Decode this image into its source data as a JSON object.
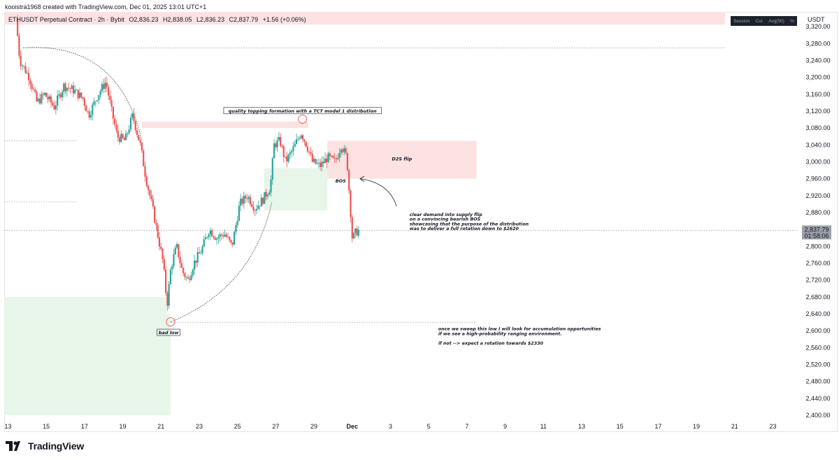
{
  "attribution": "kooistra1968 created with TradingView.com, Dec 01, 2025 13:01 UTC+1",
  "legend": {
    "symbol": "ETHUSDT Perpetual Contract · 2h · Bybit",
    "open": "O2,836.23",
    "high": "H2,838.05",
    "low": "L2,836.23",
    "close": "C2,837.79",
    "change": "+1.56 (+0.06%)"
  },
  "toolbar_badges": [
    "Session",
    "Cur",
    "Avg(50)",
    "%"
  ],
  "currency": "USDT",
  "brand": "TradingView",
  "price_label": {
    "price": "2,837.79",
    "countdown": "01:58:06"
  },
  "colors": {
    "up": "#26a69a",
    "down": "#ef5350",
    "supply_zone": "#fde2e2",
    "demand_zone": "#e8f5e9",
    "price_label_bg": "#9aa0a8",
    "grid_line": "#787b86"
  },
  "chart_data": {
    "type": "candlestick",
    "title": "ETHUSDT Perpetual Contract · 2h · Bybit",
    "y_ticks": [
      "3,320.00",
      "3,280.00",
      "3,240.00",
      "3,200.00",
      "3,160.00",
      "3,120.00",
      "3,080.00",
      "3,040.00",
      "3,000.00",
      "2,960.00",
      "2,920.00",
      "2,880.00",
      "2,840.00",
      "2,800.00",
      "2,760.00",
      "2,720.00",
      "2,680.00",
      "2,640.00",
      "2,600.00",
      "2,560.00",
      "2,520.00",
      "2,480.00",
      "2,440.00",
      "2,400.00"
    ],
    "y_tick_values": [
      3320,
      3280,
      3240,
      3200,
      3160,
      3120,
      3080,
      3040,
      3000,
      2960,
      2920,
      2880,
      2840,
      2800,
      2760,
      2720,
      2680,
      2640,
      2600,
      2560,
      2520,
      2480,
      2440,
      2400
    ],
    "x_ticks": [
      "13",
      "15",
      "17",
      "19",
      "21",
      "23",
      "25",
      "27",
      "29",
      "Dec",
      "3",
      "5",
      "7",
      "9",
      "11",
      "13",
      "15",
      "17",
      "19",
      "21",
      "23"
    ],
    "x_tick_days": [
      13,
      15,
      17,
      19,
      21,
      23,
      25,
      27,
      29,
      31,
      33,
      35,
      37,
      39,
      41,
      43,
      45,
      47,
      49,
      51,
      53
    ],
    "ylim": [
      2390,
      3355
    ],
    "xlim": [
      12.8,
      54.3
    ],
    "path": [
      [
        13.5,
        3340
      ],
      [
        13.7,
        3240
      ],
      [
        14.2,
        3200
      ],
      [
        14.6,
        3140
      ],
      [
        15.0,
        3160
      ],
      [
        15.5,
        3130
      ],
      [
        16.0,
        3180
      ],
      [
        16.5,
        3170
      ],
      [
        17.0,
        3150
      ],
      [
        17.3,
        3110
      ],
      [
        17.8,
        3160
      ],
      [
        18.2,
        3190
      ],
      [
        18.5,
        3120
      ],
      [
        18.8,
        3060
      ],
      [
        19.2,
        3050
      ],
      [
        19.6,
        3110
      ],
      [
        20.0,
        3040
      ],
      [
        20.3,
        2960
      ],
      [
        20.6,
        2900
      ],
      [
        20.9,
        2830
      ],
      [
        21.2,
        2760
      ],
      [
        21.4,
        2660
      ],
      [
        21.6,
        2750
      ],
      [
        21.9,
        2800
      ],
      [
        22.2,
        2740
      ],
      [
        22.5,
        2720
      ],
      [
        22.8,
        2760
      ],
      [
        23.2,
        2790
      ],
      [
        23.6,
        2840
      ],
      [
        24.0,
        2820
      ],
      [
        24.4,
        2830
      ],
      [
        24.8,
        2800
      ],
      [
        25.2,
        2900
      ],
      [
        25.6,
        2920
      ],
      [
        26.0,
        2890
      ],
      [
        26.4,
        2910
      ],
      [
        26.8,
        2940
      ],
      [
        27.0,
        3040
      ],
      [
        27.3,
        3050
      ],
      [
        27.6,
        3000
      ],
      [
        28.0,
        3030
      ],
      [
        28.4,
        3070
      ],
      [
        28.7,
        3040
      ],
      [
        29.0,
        3000
      ],
      [
        29.4,
        2990
      ],
      [
        29.8,
        3010
      ],
      [
        30.2,
        3000
      ],
      [
        30.5,
        3040
      ],
      [
        30.8,
        3010
      ],
      [
        31.0,
        2880
      ],
      [
        31.1,
        2810
      ],
      [
        31.2,
        2830
      ],
      [
        31.4,
        2837
      ]
    ],
    "zones": [
      {
        "x": [
          12.8,
          21.3
        ],
        "y": [
          2640,
          2680
        ],
        "kind": "demand"
      },
      {
        "x": [
          12.8,
          21.5
        ],
        "y": [
          2400,
          2640
        ],
        "kind": "demand"
      },
      {
        "x": [
          26.4,
          29.7
        ],
        "y": [
          2885,
          2985
        ],
        "kind": "demand"
      },
      {
        "x": [
          20.0,
          28.7
        ],
        "y": [
          3080,
          3095
        ],
        "kind": "supply"
      },
      {
        "x": [
          29.7,
          37.5
        ],
        "y": [
          2960,
          3050
        ],
        "kind": "supply"
      },
      {
        "x": [
          12.8,
          50.5
        ],
        "y": [
          3325,
          3355
        ],
        "kind": "supply"
      }
    ],
    "h_lines": [
      {
        "y": 3270,
        "x": [
          13.8,
          50.5
        ]
      },
      {
        "y": 3050,
        "x": [
          12.8,
          16.6
        ]
      },
      {
        "y": 2905,
        "x": [
          12.8,
          16.6
        ]
      },
      {
        "y": 2620,
        "x": [
          21.5,
          37.5
        ]
      },
      {
        "y": 2837.79,
        "x": [
          12.8,
          54.3
        ]
      }
    ],
    "annotations": [
      {
        "text": "quality topping formation with a TCT model 1 distribution",
        "x": 28.4,
        "y": 3117,
        "boxed": true
      },
      {
        "text": "D2S flip",
        "x": 33.6,
        "y": 3003,
        "boxed": false
      },
      {
        "text": "BOS",
        "x": 30.4,
        "y": 2951,
        "boxed": false
      },
      {
        "text": "bad low",
        "x": 21.4,
        "y": 2592,
        "boxed": true
      }
    ],
    "notes": [
      {
        "lines": [
          "clear demand into supply flip",
          "on a convincing bearish BOS",
          "showcasing that the purpose of the distribution",
          "was to deliver a full rotation down to $2620"
        ],
        "x": 34.0,
        "y": 2872
      },
      {
        "lines": [
          "once we sweep this low I will look for accumulation opportunities",
          "if we see a high-probability ranging environment.",
          "",
          "if not --> expect a rotation towards $2330"
        ],
        "x": 35.5,
        "y": 2601
      }
    ],
    "circles": [
      {
        "x": 21.5,
        "y": 2621
      },
      {
        "x": 28.4,
        "y": 3101
      }
    ]
  }
}
